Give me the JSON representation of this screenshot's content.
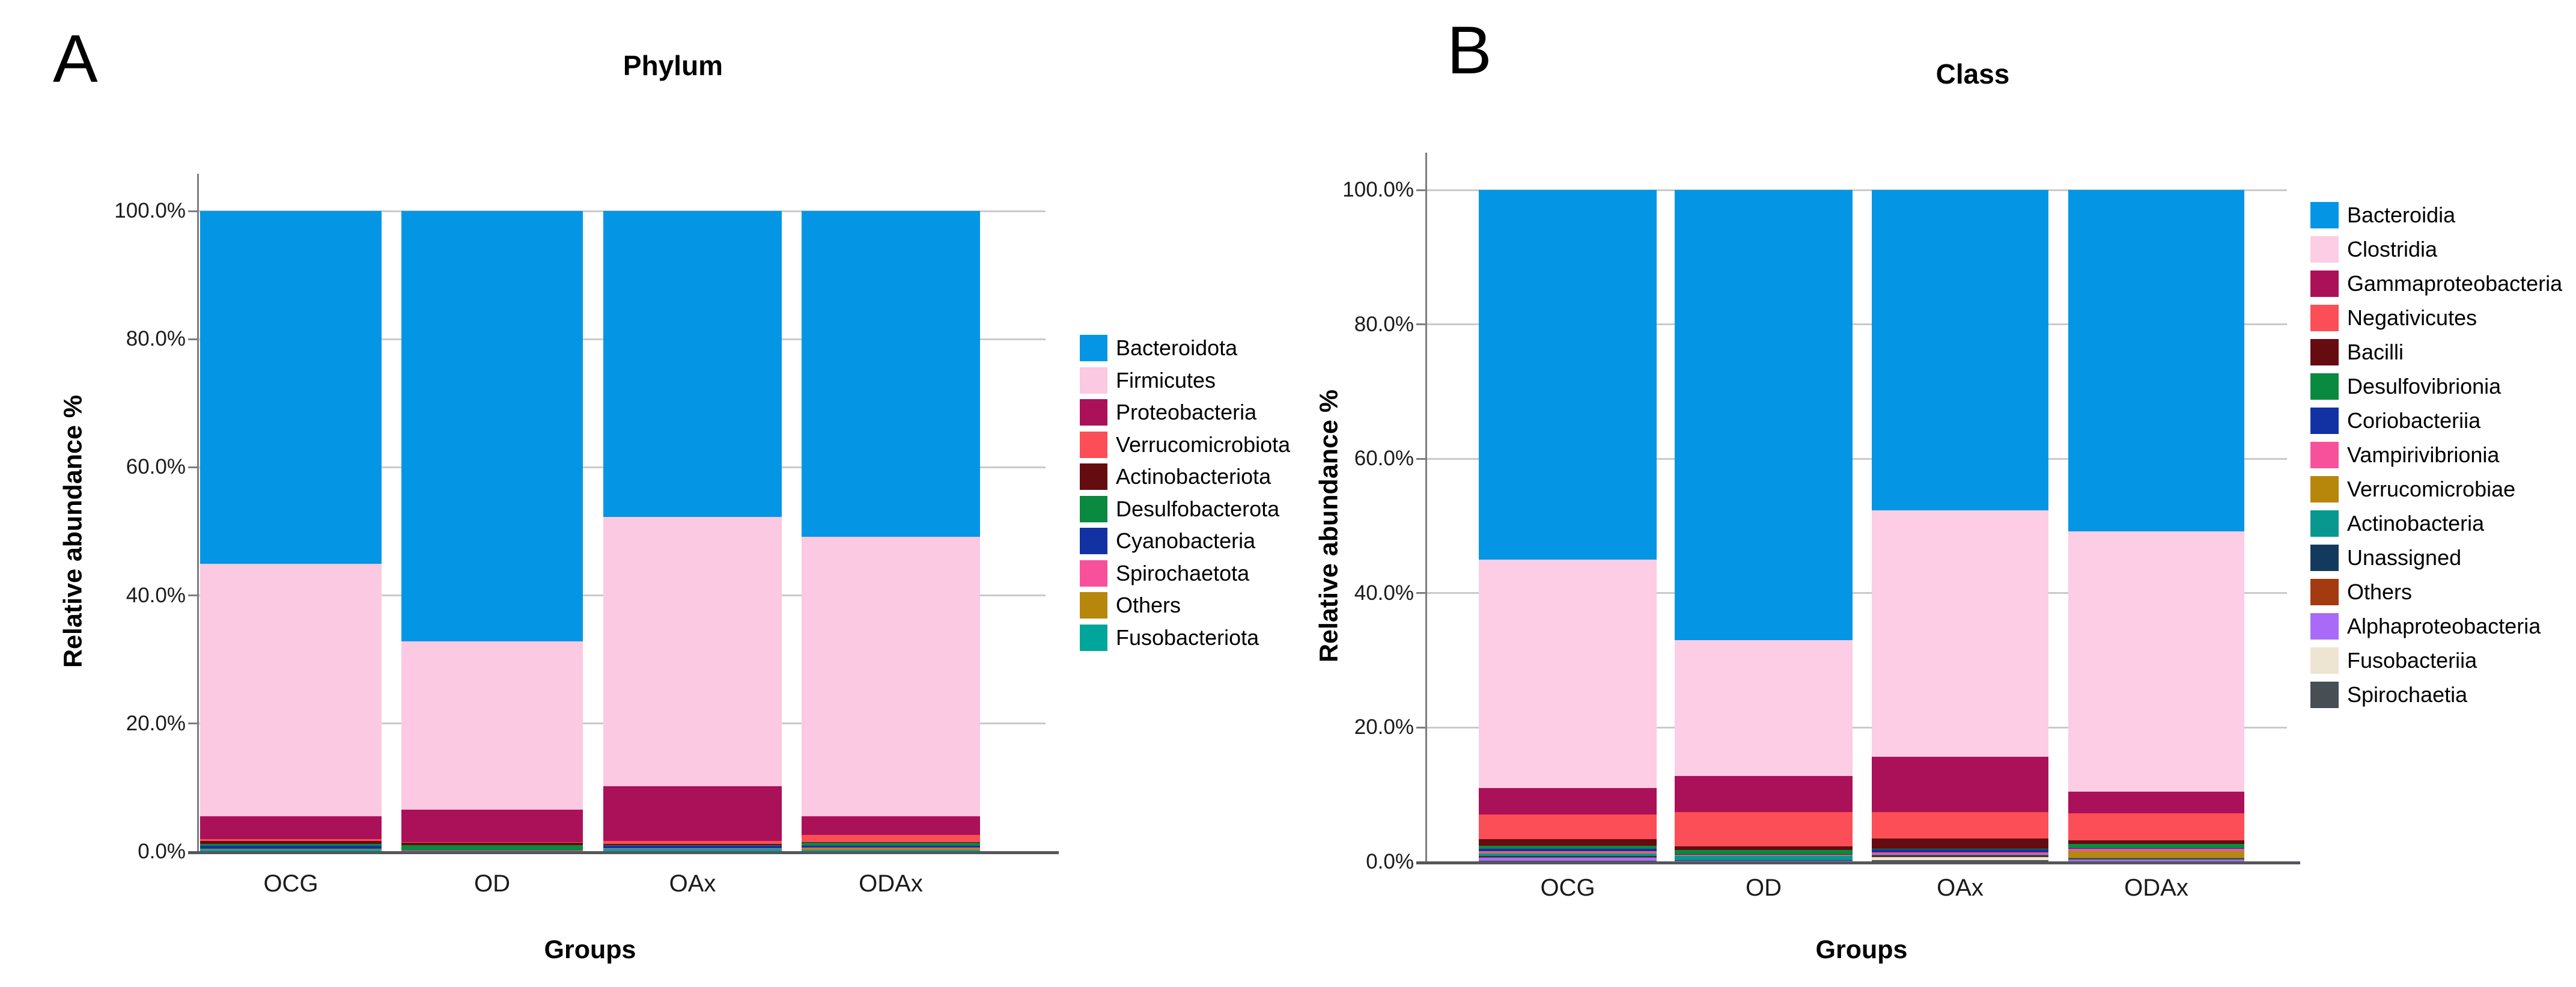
{
  "figure": {
    "background": "#ffffff",
    "y_axis_ticks": [
      "0.0%",
      "20.0%",
      "40.0%",
      "60.0%",
      "80.0%",
      "100.0%"
    ]
  },
  "chart_data": [
    {
      "type": "bar",
      "stacked": true,
      "panel_letter": "A",
      "title": "Phylum",
      "xlabel": "Groups",
      "ylabel": "Relative abundance %",
      "ylim": [
        0,
        100
      ],
      "grid": "horizontal-major-20pct",
      "legend_position": "right",
      "categories": [
        "OCG",
        "OD",
        "OAx",
        "ODAx"
      ],
      "y_tick_labels": [
        "0.0%",
        "20.0%",
        "40.0%",
        "60.0%",
        "80.0%",
        "100.0%"
      ],
      "series": [
        {
          "name": "Bacteroidota",
          "color": "#0496E4",
          "values": [
            55.1,
            67.15,
            47.7,
            50.8
          ]
        },
        {
          "name": "Firmicutes",
          "color": "#FBC9E1",
          "values": [
            39.4,
            26.3,
            42.1,
            43.65
          ]
        },
        {
          "name": "Proteobacteria",
          "color": "#AB1158",
          "values": [
            3.5,
            5.0,
            8.5,
            2.95
          ]
        },
        {
          "name": "Verrucomicrobiota",
          "color": "#FB4E57",
          "values": [
            0.35,
            0.15,
            0.45,
            1.05
          ]
        },
        {
          "name": "Actinobacteriota",
          "color": "#650C10",
          "values": [
            0.4,
            0.35,
            0.25,
            0.15
          ]
        },
        {
          "name": "Desulfobacterota",
          "color": "#098A40",
          "values": [
            0.3,
            0.85,
            0.1,
            0.5
          ]
        },
        {
          "name": "Cyanobacteria",
          "color": "#1232A3",
          "values": [
            0.45,
            0.05,
            0.35,
            0.25
          ]
        },
        {
          "name": "Spirochaetota",
          "color": "#F8519C",
          "values": [
            0.05,
            0.05,
            0.05,
            0.05
          ]
        },
        {
          "name": "Others",
          "color": "#B7870C",
          "values": [
            0.05,
            0.05,
            0.05,
            0.3
          ]
        },
        {
          "name": "Fusobacteriota",
          "color": "#00A69B",
          "values": [
            0.4,
            0.05,
            0.45,
            0.3
          ]
        }
      ]
    },
    {
      "type": "bar",
      "stacked": true,
      "panel_letter": "B",
      "title": "Class",
      "xlabel": "Groups",
      "ylabel": "Relative abundance %",
      "ylim": [
        0,
        100
      ],
      "grid": "horizontal-major-20pct",
      "legend_position": "right",
      "categories": [
        "OCG",
        "OD",
        "OAx",
        "ODAx"
      ],
      "y_tick_labels": [
        "0.0%",
        "20.0%",
        "40.0%",
        "60.0%",
        "80.0%",
        "100.0%"
      ],
      "series": [
        {
          "name": "Bacteroidia",
          "color": "#0496E4",
          "values": [
            55.0,
            67.0,
            47.7,
            50.8
          ]
        },
        {
          "name": "Clostridia",
          "color": "#FCCDE4",
          "values": [
            34.0,
            20.2,
            36.6,
            38.75
          ]
        },
        {
          "name": "Gammaproteobacteria",
          "color": "#AB1158",
          "values": [
            3.9,
            5.4,
            8.3,
            3.2
          ]
        },
        {
          "name": "Negativicutes",
          "color": "#FB4E57",
          "values": [
            3.7,
            5.1,
            3.9,
            4.0
          ]
        },
        {
          "name": "Bacilli",
          "color": "#650C10",
          "values": [
            1.0,
            0.5,
            1.5,
            0.6
          ]
        },
        {
          "name": "Desulfovibrionia",
          "color": "#098A40",
          "values": [
            0.4,
            0.6,
            0.1,
            0.55
          ]
        },
        {
          "name": "Coriobacteriia",
          "color": "#1232A3",
          "values": [
            0.35,
            0.15,
            0.5,
            0.1
          ]
        },
        {
          "name": "Vampirivibrionia",
          "color": "#F8519C",
          "values": [
            0.3,
            0.1,
            0.3,
            0.4
          ]
        },
        {
          "name": "Verrucomicrobiae",
          "color": "#B7870C",
          "values": [
            0.1,
            0.05,
            0.05,
            1.0
          ]
        },
        {
          "name": "Actinobacteria",
          "color": "#089890",
          "values": [
            0.35,
            0.6,
            0.1,
            0.1
          ]
        },
        {
          "name": "Unassigned",
          "color": "#133A5C",
          "values": [
            0.15,
            0.1,
            0.1,
            0.05
          ]
        },
        {
          "name": "Others",
          "color": "#A33A10",
          "values": [
            0.1,
            0.05,
            0.1,
            0.05
          ]
        },
        {
          "name": "Alphaproteobacteria",
          "color": "#A96BF7",
          "values": [
            0.45,
            0.05,
            0.05,
            0.3
          ]
        },
        {
          "name": "Fusobacteriia",
          "color": "#EDE5D1",
          "values": [
            0.05,
            0.05,
            0.45,
            0.05
          ]
        },
        {
          "name": "Spirochaetia",
          "color": "#474F55",
          "values": [
            0.15,
            0.05,
            0.25,
            0.05
          ]
        }
      ]
    }
  ]
}
